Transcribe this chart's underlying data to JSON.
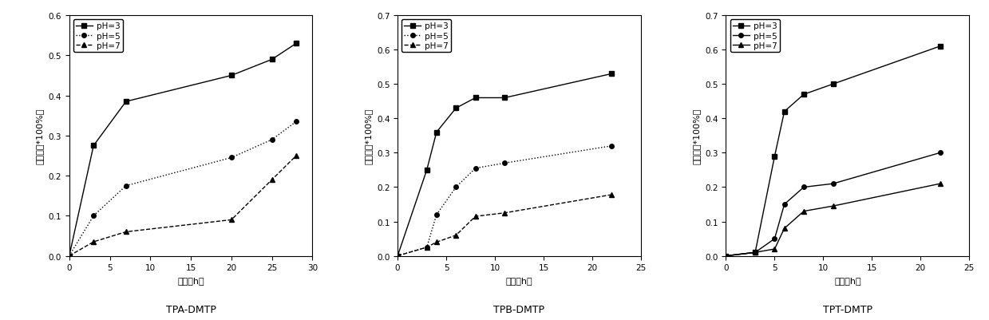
{
  "panels": [
    {
      "title": "TPA-DMTP",
      "xlabel": "时间（h）",
      "ylabel": "释放量（*100%）",
      "xlim": [
        0,
        30
      ],
      "ylim": [
        0.0,
        0.6
      ],
      "yticks": [
        0.0,
        0.1,
        0.2,
        0.3,
        0.4,
        0.5,
        0.6
      ],
      "xticks": [
        0,
        5,
        10,
        15,
        20,
        25,
        30
      ],
      "series": [
        {
          "label": "pH=3",
          "x": [
            0,
            3,
            7,
            20,
            25,
            28
          ],
          "y": [
            0.0,
            0.275,
            0.385,
            0.45,
            0.49,
            0.53
          ],
          "marker": "s",
          "linestyle": "-",
          "color": "#000000"
        },
        {
          "label": "pH=5",
          "x": [
            0,
            3,
            7,
            20,
            25,
            28
          ],
          "y": [
            0.0,
            0.1,
            0.175,
            0.245,
            0.29,
            0.335
          ],
          "marker": "o",
          "linestyle": ":",
          "color": "#000000"
        },
        {
          "label": "pH=7",
          "x": [
            0,
            3,
            7,
            20,
            25,
            28
          ],
          "y": [
            0.0,
            0.035,
            0.06,
            0.09,
            0.19,
            0.25
          ],
          "marker": "^",
          "linestyle": "--",
          "color": "#000000"
        }
      ]
    },
    {
      "title": "TPB-DMTP",
      "xlabel": "时间（h）",
      "ylabel": "释放量（*100%）",
      "xlim": [
        0,
        25
      ],
      "ylim": [
        0.0,
        0.7
      ],
      "yticks": [
        0.0,
        0.1,
        0.2,
        0.3,
        0.4,
        0.5,
        0.6,
        0.7
      ],
      "xticks": [
        0,
        5,
        10,
        15,
        20,
        25
      ],
      "series": [
        {
          "label": "pH=3",
          "x": [
            0,
            3,
            4,
            6,
            8,
            11,
            22
          ],
          "y": [
            0.0,
            0.25,
            0.36,
            0.43,
            0.46,
            0.46,
            0.53
          ],
          "marker": "s",
          "linestyle": "-",
          "color": "#000000"
        },
        {
          "label": "pH=5",
          "x": [
            0,
            3,
            4,
            6,
            8,
            11,
            22
          ],
          "y": [
            0.0,
            0.025,
            0.12,
            0.2,
            0.255,
            0.27,
            0.32
          ],
          "marker": "o",
          "linestyle": ":",
          "color": "#000000"
        },
        {
          "label": "pH=7",
          "x": [
            0,
            3,
            4,
            6,
            8,
            11,
            22
          ],
          "y": [
            0.0,
            0.025,
            0.04,
            0.06,
            0.115,
            0.125,
            0.178
          ],
          "marker": "^",
          "linestyle": "--",
          "color": "#000000"
        }
      ]
    },
    {
      "title": "TPT-DMTP",
      "xlabel": "时间（h）",
      "ylabel": "释放量（*100%）",
      "xlim": [
        0,
        25
      ],
      "ylim": [
        0.0,
        0.7
      ],
      "yticks": [
        0.0,
        0.1,
        0.2,
        0.3,
        0.4,
        0.5,
        0.6,
        0.7
      ],
      "xticks": [
        0,
        5,
        10,
        15,
        20,
        25
      ],
      "series": [
        {
          "label": "pH=3",
          "x": [
            0,
            3,
            5,
            6,
            8,
            11,
            22
          ],
          "y": [
            0.0,
            0.01,
            0.29,
            0.42,
            0.47,
            0.5,
            0.61
          ],
          "marker": "s",
          "linestyle": "-",
          "color": "#000000"
        },
        {
          "label": "pH=5",
          "x": [
            0,
            3,
            5,
            6,
            8,
            11,
            22
          ],
          "y": [
            0.0,
            0.01,
            0.05,
            0.15,
            0.2,
            0.21,
            0.3
          ],
          "marker": "o",
          "linestyle": "-",
          "color": "#000000"
        },
        {
          "label": "pH=7",
          "x": [
            0,
            3,
            5,
            6,
            8,
            11,
            22
          ],
          "y": [
            0.0,
            0.01,
            0.02,
            0.08,
            0.13,
            0.145,
            0.21
          ],
          "marker": "^",
          "linestyle": "-",
          "color": "#000000"
        }
      ]
    }
  ],
  "background_color": "#ffffff",
  "font_color": "#000000",
  "title_fontsize": 9,
  "label_fontsize": 8,
  "tick_fontsize": 7.5,
  "legend_fontsize": 7.5,
  "markersize": 4,
  "linewidth": 1.0
}
